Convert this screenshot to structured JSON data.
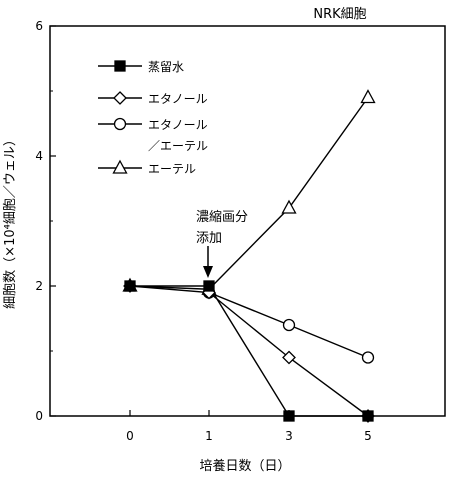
{
  "chart_data": {
    "type": "line",
    "title": "NRK細胞",
    "xlabel": "培養日数（日）",
    "ylabel": "細胞数（×10⁴細胞／ウェル）",
    "x_ticks": [
      "0",
      "1",
      "3",
      "5"
    ],
    "y_ticks": [
      "0",
      "2",
      "4",
      "6"
    ],
    "ylim": [
      0,
      6
    ],
    "grid": false,
    "legend_position": "top-left",
    "annotation": {
      "lines": [
        "濃縮画分",
        "添加"
      ],
      "x": "1"
    },
    "series": [
      {
        "name": "蒸留水",
        "marker": "filled-square",
        "points": [
          [
            "0",
            2.0
          ],
          [
            "1",
            2.0
          ],
          [
            "3",
            0.0
          ],
          [
            "5",
            0.0
          ]
        ]
      },
      {
        "name": "エタノール",
        "marker": "open-diamond",
        "points": [
          [
            "0",
            2.0
          ],
          [
            "1",
            1.9
          ],
          [
            "3",
            0.9
          ],
          [
            "5",
            0.0
          ]
        ]
      },
      {
        "name": "エタノール\n／エーテル",
        "name_lines": [
          "エタノール",
          "／エーテル"
        ],
        "marker": "open-circle",
        "points": [
          [
            "1",
            1.9
          ],
          [
            "3",
            1.4
          ],
          [
            "5",
            0.9
          ]
        ]
      },
      {
        "name": "エーテル",
        "marker": "open-triangle",
        "points": [
          [
            "0",
            2.0
          ],
          [
            "1",
            1.95
          ],
          [
            "3",
            3.2
          ],
          [
            "5",
            4.9
          ]
        ]
      }
    ]
  }
}
